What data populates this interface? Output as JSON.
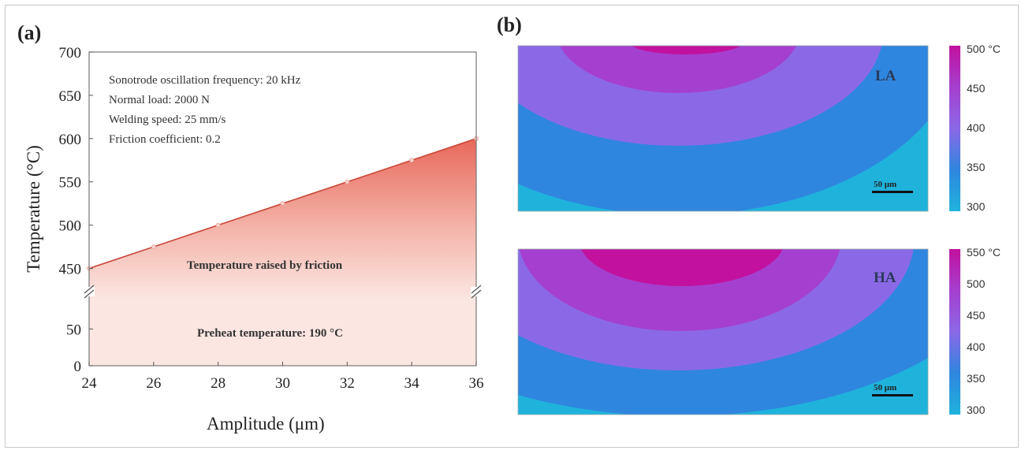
{
  "panels": {
    "a_label": "(a)",
    "b_label": "(b)"
  },
  "chart_data": [
    {
      "type": "area",
      "xlabel": "Amplitude (μm)",
      "ylabel": "Temperature (°C)",
      "xlim": [
        24,
        36
      ],
      "ylim_upper": [
        425,
        700
      ],
      "ylim_lower": [
        0,
        90
      ],
      "axis_break": true,
      "x_ticks": [
        "24",
        "26",
        "28",
        "30",
        "32",
        "34",
        "36"
      ],
      "y_ticks_upper": [
        "450",
        "500",
        "550",
        "600",
        "650",
        "700"
      ],
      "y_ticks_lower": [
        "0",
        "50"
      ],
      "series": [
        {
          "x": [
            24,
            26,
            28,
            30,
            32,
            34,
            36
          ],
          "values": [
            450,
            475,
            500,
            525,
            550,
            575,
            600
          ]
        }
      ],
      "parameters": [
        "Sonotrode oscillation frequency: 20 kHz",
        "Normal load: 2000 N",
        "Welding speed: 25 mm/s",
        "Friction coefficient: 0.2"
      ],
      "region_labels": {
        "friction": "Temperature raised by friction",
        "preheat": "Preheat temperature: 190 °C"
      },
      "colors": {
        "line": "#c9473a",
        "fill_top": "#e8675a",
        "fill_bottom": "#fbe6e2"
      }
    },
    {
      "type": "heatmap",
      "label": "LA",
      "scale_bar": "50 μm",
      "colorbar_ticks": [
        "500 °C",
        "450",
        "400",
        "350",
        "300"
      ],
      "colors": [
        "#c2119e",
        "#a53fcf",
        "#8b69e6",
        "#2f86df",
        "#1fb3dc"
      ]
    },
    {
      "type": "heatmap",
      "label": "HA",
      "scale_bar": "50 μm",
      "colorbar_ticks": [
        "550 °C",
        "500",
        "450",
        "400",
        "350",
        "300"
      ],
      "colors": [
        "#c2119e",
        "#a53fcf",
        "#8b69e6",
        "#2f86df",
        "#1fb3dc"
      ]
    }
  ]
}
